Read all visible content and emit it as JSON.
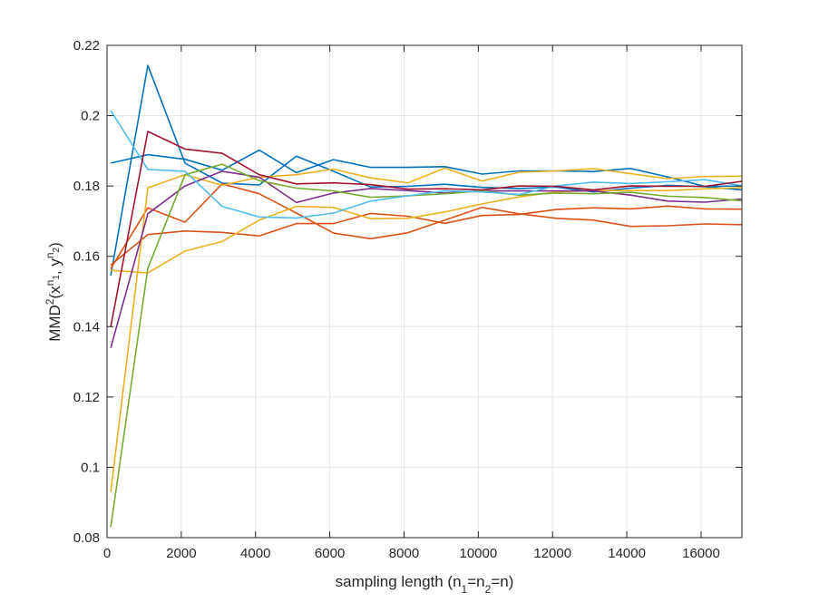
{
  "chart_data": {
    "type": "line",
    "xlabel": "sampling length (n₁=n₂=n)",
    "ylabel": "MMD²(x^n₁, y^n₂)",
    "xlim": [
      0,
      17100
    ],
    "ylim": [
      0.08,
      0.22
    ],
    "xticks": [
      0,
      2000,
      4000,
      6000,
      8000,
      10000,
      12000,
      14000,
      16000
    ],
    "yticks": [
      0.08,
      0.1,
      0.12,
      0.14,
      0.16,
      0.18,
      0.2,
      0.22
    ],
    "xtick_labels": [
      "0",
      "2000",
      "4000",
      "6000",
      "8000",
      "10000",
      "12000",
      "14000",
      "16000"
    ],
    "ytick_labels": [
      "0.08",
      "0.1",
      "0.12",
      "0.14",
      "0.16",
      "0.18",
      "0.2",
      "0.22"
    ],
    "grid": true,
    "x": [
      100,
      1100,
      2100,
      3100,
      4100,
      5100,
      6100,
      7100,
      8100,
      9100,
      10100,
      11100,
      12100,
      13100,
      14100,
      15100,
      16100,
      17100
    ],
    "series": [
      {
        "color": "#0072BD",
        "values": [
          0.1545,
          0.2143,
          0.1865,
          0.1808,
          0.1803,
          0.1885,
          0.1842,
          0.1797,
          0.1799,
          0.1805,
          0.1796,
          0.1793,
          0.1797,
          0.1783,
          0.1794,
          0.1802,
          0.1798,
          0.1789
        ]
      },
      {
        "color": "#0072BD",
        "values": [
          0.1865,
          0.1889,
          0.1876,
          0.1845,
          0.1902,
          0.1838,
          0.1875,
          0.1853,
          0.1853,
          0.1855,
          0.1834,
          0.1843,
          0.1843,
          0.1841,
          0.185,
          0.1826,
          0.1799,
          0.18
        ]
      },
      {
        "color": "#D95319",
        "values": [
          0.1565,
          0.1738,
          0.1697,
          0.1806,
          0.1778,
          0.1723,
          0.1666,
          0.165,
          0.1667,
          0.1703,
          0.1739,
          0.1721,
          0.1708,
          0.1703,
          0.1685,
          0.1687,
          0.1692,
          0.169
        ]
      },
      {
        "color": "#D95319",
        "values": [
          0.1575,
          0.1662,
          0.1672,
          0.1668,
          0.1658,
          0.1693,
          0.1693,
          0.1722,
          0.1714,
          0.1694,
          0.1716,
          0.1719,
          0.1733,
          0.1738,
          0.1735,
          0.1743,
          0.1735,
          0.1734
        ]
      },
      {
        "color": "#EDB120",
        "values": [
          0.093,
          0.1795,
          0.1832,
          0.1802,
          0.1825,
          0.1832,
          0.1848,
          0.1823,
          0.1809,
          0.1851,
          0.1814,
          0.1839,
          0.1843,
          0.1849,
          0.1835,
          0.1821,
          0.1827,
          0.1828
        ]
      },
      {
        "color": "#EDB120",
        "values": [
          0.156,
          0.1553,
          0.1615,
          0.1642,
          0.1703,
          0.1742,
          0.1739,
          0.1707,
          0.1708,
          0.1726,
          0.1749,
          0.1769,
          0.1783,
          0.1787,
          0.1787,
          0.1787,
          0.1792,
          0.1795
        ]
      },
      {
        "color": "#7E2F8E",
        "values": [
          0.134,
          0.1721,
          0.18,
          0.1842,
          0.1825,
          0.1753,
          0.178,
          0.1793,
          0.1787,
          0.178,
          0.1786,
          0.1786,
          0.1786,
          0.1786,
          0.1774,
          0.1757,
          0.1754,
          0.1763
        ]
      },
      {
        "color": "#77AC30",
        "values": [
          0.083,
          0.1566,
          0.1832,
          0.1862,
          0.1815,
          0.1794,
          0.1786,
          0.1768,
          0.1772,
          0.1778,
          0.1786,
          0.1774,
          0.178,
          0.1778,
          0.1782,
          0.1771,
          0.1767,
          0.1758
        ]
      },
      {
        "color": "#4DBEEE",
        "values": [
          0.2015,
          0.1847,
          0.1842,
          0.1742,
          0.1712,
          0.1709,
          0.1723,
          0.1757,
          0.1772,
          0.1786,
          0.1783,
          0.1776,
          0.18,
          0.1811,
          0.1807,
          0.1812,
          0.1818,
          0.1801
        ]
      },
      {
        "color": "#A2142F",
        "values": [
          0.14,
          0.1955,
          0.1905,
          0.1893,
          0.1832,
          0.1806,
          0.1809,
          0.1804,
          0.1791,
          0.1792,
          0.1789,
          0.18,
          0.1799,
          0.1789,
          0.18,
          0.1799,
          0.1799,
          0.1813
        ]
      }
    ]
  }
}
